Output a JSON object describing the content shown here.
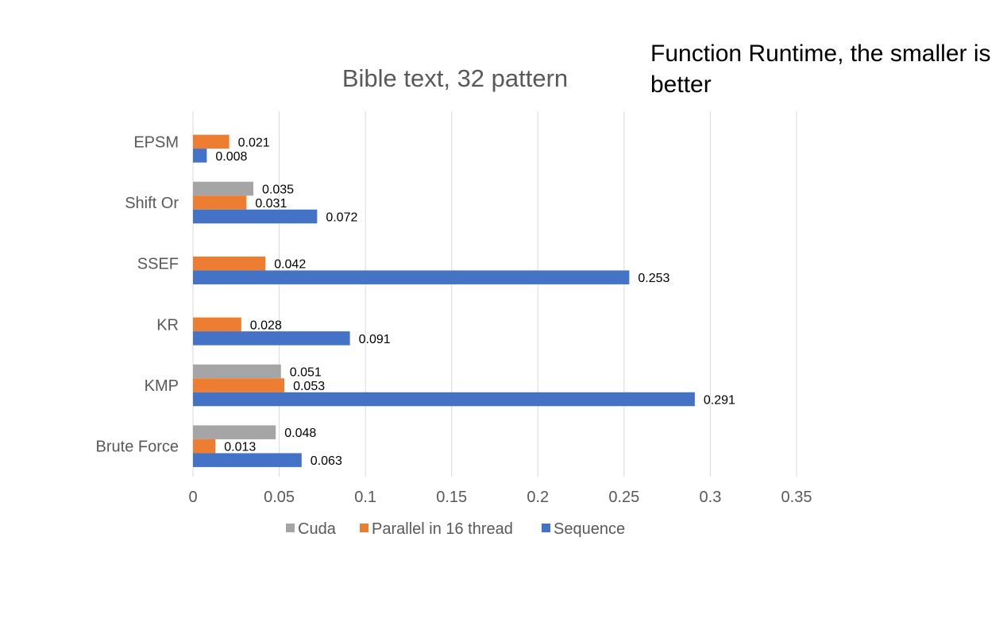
{
  "annotation": {
    "text": "Function Runtime, the smaller is better"
  },
  "chart_data": {
    "type": "bar",
    "orientation": "horizontal",
    "title": "Bible text, 32 pattern",
    "xlabel": "",
    "ylabel": "",
    "categories": [
      "EPSM",
      "Shift Or",
      "SSEF",
      "KR",
      "KMP",
      "Brute Force"
    ],
    "series": [
      {
        "name": "Cuda",
        "color": "#a5a5a5",
        "values": [
          null,
          0.035,
          null,
          null,
          0.051,
          0.048
        ]
      },
      {
        "name": "Parallel in 16 thread",
        "color": "#ed7d31",
        "values": [
          0.021,
          0.031,
          0.042,
          0.028,
          0.053,
          0.013
        ]
      },
      {
        "name": "Sequence",
        "color": "#4472c4",
        "values": [
          0.008,
          0.072,
          0.253,
          0.091,
          0.291,
          0.063
        ]
      }
    ],
    "xlim": [
      0,
      0.35
    ],
    "xticks": [
      0,
      0.05,
      0.1,
      0.15,
      0.2,
      0.25,
      0.3,
      0.35
    ],
    "xtick_labels": [
      "0",
      "0.05",
      "0.1",
      "0.15",
      "0.2",
      "0.25",
      "0.3",
      "0.35"
    ],
    "grid": true,
    "legend_position": "bottom"
  }
}
